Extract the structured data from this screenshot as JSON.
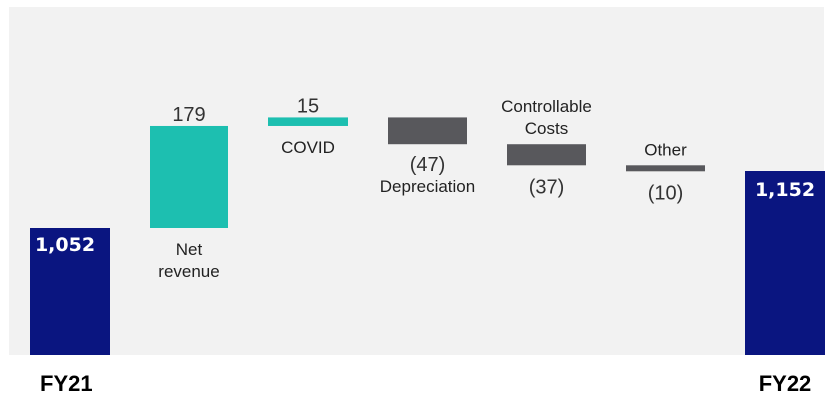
{
  "chart_data": {
    "type": "waterfall",
    "title": "",
    "start": {
      "label": "FY21",
      "value": 1052,
      "value_label": "1,052"
    },
    "end": {
      "label": "FY22",
      "value": 1152,
      "value_label": "1,152"
    },
    "steps": [
      {
        "name": "Net revenue",
        "label_lines": [
          "Net",
          "revenue"
        ],
        "value": 179,
        "value_label": "179"
      },
      {
        "name": "COVID",
        "label_lines": [
          "COVID"
        ],
        "value": 15,
        "value_label": "15"
      },
      {
        "name": "Depreciation",
        "label_lines": [
          "Depreciation"
        ],
        "value": -47,
        "value_label": "(47)"
      },
      {
        "name": "Controllable Costs",
        "label_lines": [
          "Controllable",
          "Costs"
        ],
        "value": -37,
        "value_label": "(37)"
      },
      {
        "name": "Other",
        "label_lines": [
          "Other"
        ],
        "value": -10,
        "value_label": "(10)"
      }
    ],
    "colors": {
      "total": "#0a1580",
      "increase": "#1dbfb0",
      "decrease": "#58585c",
      "background": "#f2f2f2"
    },
    "baseline_hidden": true
  }
}
